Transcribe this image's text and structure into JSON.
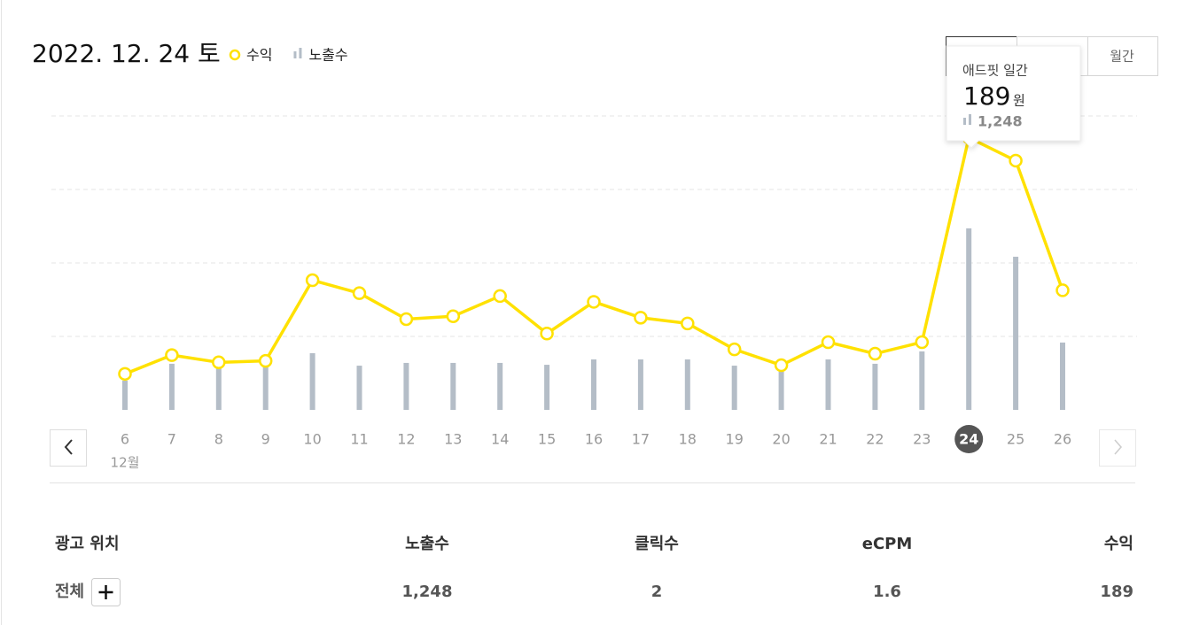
{
  "header": {
    "date": "2022. 12. 24 토",
    "tabs": [
      "월간"
    ]
  },
  "chart_data": {
    "type": "combo",
    "categories": [
      "6",
      "7",
      "8",
      "9",
      "10",
      "11",
      "12",
      "13",
      "14",
      "15",
      "16",
      "17",
      "18",
      "19",
      "20",
      "21",
      "22",
      "23",
      "24",
      "25",
      "26"
    ],
    "month_label": "12월",
    "selected_category": "24",
    "series": [
      {
        "name": "수익",
        "type": "line",
        "color": "#ffe100",
        "values": [
          25,
          38,
          33,
          34,
          90,
          81,
          63,
          65,
          79,
          53,
          75,
          64,
          60,
          42,
          31,
          47,
          39,
          47,
          189,
          173,
          83
        ]
      },
      {
        "name": "노출수",
        "type": "bar",
        "axis": "y2",
        "color": "#b4bdc7",
        "values": [
          201,
          317,
          286,
          298,
          390,
          304,
          323,
          323,
          323,
          310,
          347,
          347,
          347,
          304,
          262,
          347,
          317,
          402,
          1248,
          1053,
          463
        ]
      }
    ],
    "ylim": [
      0,
      204
    ],
    "y2lim": [
      0,
      2021
    ],
    "grid": true
  },
  "tooltip": {
    "title": "애드핏 일간",
    "value": 189,
    "unit": "원",
    "impressions": "1,248"
  },
  "table": {
    "headers": [
      "광고 위치",
      "노출수",
      "클릭수",
      "eCPM",
      "수익"
    ],
    "rows": [
      [
        "전체",
        "1,248",
        "2",
        "1.6",
        "189"
      ]
    ]
  }
}
